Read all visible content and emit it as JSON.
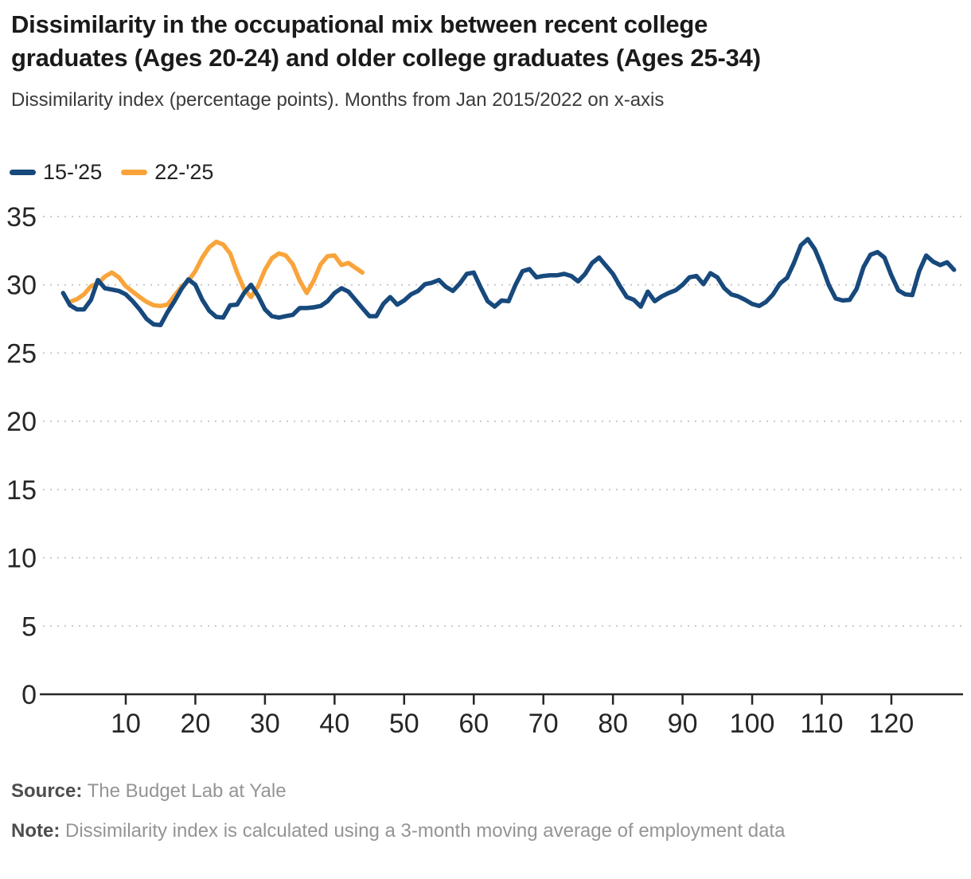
{
  "header": {
    "title_lines": {
      "0": "Dissimilarity in the occupational mix between recent college",
      "1": "graduates (Ages 20-24) and older college graduates (Ages 25-34)"
    },
    "subtitle": "Dissimilarity index (percentage points). Months from Jan 2015/2022 on x-axis"
  },
  "legend": [
    {
      "label": "15-'25",
      "color": "#17497C"
    },
    {
      "label": "22-'25",
      "color": "#F9A43B"
    }
  ],
  "footer": {
    "source_label": "Source:",
    "source_text": "The Budget Lab at Yale",
    "note_label": "Note:",
    "note_text": "Dissimilarity index is calculated using a 3-month moving average of employment data"
  },
  "chart_data": {
    "type": "line",
    "title": "Dissimilarity in the occupational mix between recent college graduates (Ages 20-24) and older college graduates (Ages 25-34)",
    "xlabel": "Months from Jan 2015/2022",
    "ylabel": "Dissimilarity index (percentage points)",
    "xlim": [
      -2,
      130.5
    ],
    "ylim": [
      0,
      35
    ],
    "x_ticks": [
      10,
      20,
      30,
      40,
      50,
      60,
      70,
      80,
      90,
      100,
      110,
      120
    ],
    "y_ticks": [
      0,
      5,
      10,
      15,
      20,
      25,
      30,
      35
    ],
    "grid": "horizontal-dotted",
    "legend_position": "top-left",
    "colors": {
      "axis": "#262626",
      "grid": "#c9c9c9",
      "tick_label": "#262626"
    },
    "series": [
      {
        "name": "22-'25",
        "color": "#F9A43B",
        "x_start": 2,
        "x_step": 1,
        "values": [
          28.75,
          28.95,
          29.3,
          29.9,
          30.1,
          30.6,
          30.9,
          30.55,
          29.9,
          29.5,
          29.1,
          28.75,
          28.5,
          28.45,
          28.55,
          29.2,
          29.85,
          30.3,
          31.0,
          32.0,
          32.75,
          33.15,
          32.95,
          32.3,
          30.9,
          29.7,
          29.1,
          29.9,
          31.1,
          31.95,
          32.3,
          32.15,
          31.5,
          30.3,
          29.4,
          30.3,
          31.5,
          32.1,
          32.15,
          31.45,
          31.6,
          31.25,
          30.9
        ]
      },
      {
        "name": "15-'25",
        "color": "#17497C",
        "x_start": 1,
        "x_step": 1,
        "values": [
          29.4,
          28.5,
          28.2,
          28.2,
          28.9,
          30.35,
          29.75,
          29.65,
          29.55,
          29.3,
          28.8,
          28.2,
          27.5,
          27.1,
          27.05,
          28.0,
          28.8,
          29.7,
          30.4,
          30.0,
          28.9,
          28.1,
          27.65,
          27.6,
          28.5,
          28.55,
          29.4,
          30.0,
          29.2,
          28.2,
          27.7,
          27.6,
          27.7,
          27.8,
          28.3,
          28.3,
          28.35,
          28.45,
          28.8,
          29.4,
          29.75,
          29.5,
          28.9,
          28.3,
          27.7,
          27.7,
          28.6,
          29.1,
          28.55,
          28.85,
          29.3,
          29.55,
          30.05,
          30.15,
          30.35,
          29.85,
          29.55,
          30.1,
          30.8,
          30.9,
          29.8,
          28.8,
          28.4,
          28.85,
          28.8,
          30.0,
          31.0,
          31.15,
          30.55,
          30.65,
          30.7,
          30.7,
          30.8,
          30.65,
          30.25,
          30.8,
          31.6,
          32.0,
          31.4,
          30.8,
          29.9,
          29.1,
          28.9,
          28.4,
          29.5,
          28.8,
          29.15,
          29.4,
          29.6,
          30.0,
          30.55,
          30.65,
          30.05,
          30.85,
          30.55,
          29.75,
          29.3,
          29.15,
          28.9,
          28.6,
          28.45,
          28.75,
          29.3,
          30.1,
          30.5,
          31.6,
          32.9,
          33.35,
          32.6,
          31.4,
          30.0,
          29.0,
          28.85,
          28.9,
          29.7,
          31.3,
          32.2,
          32.4,
          32.0,
          30.7,
          29.6,
          29.3,
          29.25,
          31.0,
          32.15,
          31.7,
          31.45,
          31.65,
          31.1
        ]
      }
    ]
  }
}
